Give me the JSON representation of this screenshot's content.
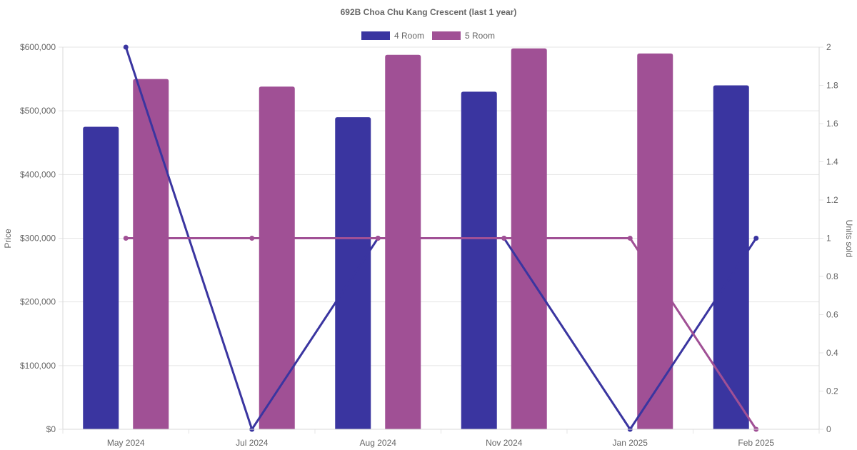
{
  "chart_data": {
    "type": "bar",
    "title": "692B Choa Chu Kang Crescent (last 1 year)",
    "categories": [
      "May 2024",
      "Jul 2024",
      "Aug 2024",
      "Nov 2024",
      "Jan 2025",
      "Feb 2025"
    ],
    "price_series": [
      {
        "name": "4 Room",
        "type": "bar",
        "axis": "left",
        "color": "#3a35a0",
        "values": [
          475000,
          null,
          490000,
          530000,
          null,
          540000
        ]
      },
      {
        "name": "5 Room",
        "type": "bar",
        "axis": "left",
        "color": "#a05095",
        "values": [
          550000,
          538000,
          588000,
          598000,
          590000,
          null
        ]
      }
    ],
    "units_series": [
      {
        "name": "4 Room",
        "type": "line",
        "axis": "right",
        "color": "#3a35a0",
        "values": [
          2,
          0,
          1,
          1,
          0,
          1
        ]
      },
      {
        "name": "5 Room",
        "type": "line",
        "axis": "right",
        "color": "#a05095",
        "values": [
          1,
          1,
          1,
          1,
          1,
          0
        ]
      }
    ],
    "legend": {
      "position": "top",
      "items": [
        "4 Room",
        "5 Room"
      ]
    },
    "ylabel": "Price",
    "y2label": "Units sold",
    "ylim": [
      0,
      600000
    ],
    "y2lim": [
      0,
      2
    ],
    "yticks": [
      "$0",
      "$100,000",
      "$200,000",
      "$300,000",
      "$400,000",
      "$500,000",
      "$600,000"
    ],
    "y2ticks": [
      "0",
      "0.2",
      "0.4",
      "0.6",
      "0.8",
      "1",
      "1.2",
      "1.4",
      "1.6",
      "1.8",
      "2"
    ],
    "grid": true
  }
}
